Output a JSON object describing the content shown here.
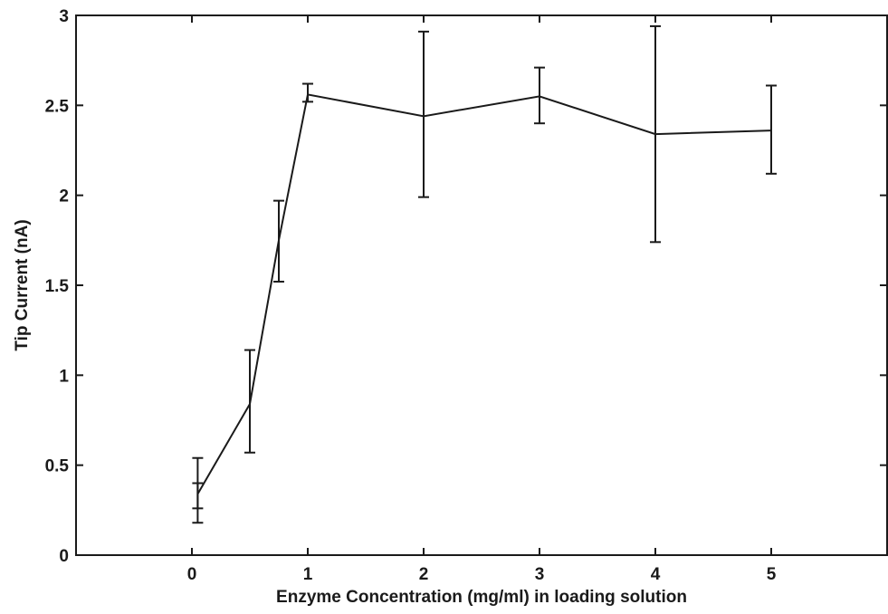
{
  "chart_data": {
    "type": "line",
    "title": "",
    "xlabel": "Enzyme Concentration (mg/ml) in loading solution",
    "ylabel": "Tip Current (nA)",
    "xlim": [
      -1,
      6
    ],
    "ylim": [
      0,
      3
    ],
    "xticks": [
      0,
      1,
      2,
      3,
      4,
      5
    ],
    "yticks": [
      0,
      0.5,
      1,
      1.5,
      2,
      2.5,
      3
    ],
    "xtick_labels": [
      "0",
      "1",
      "2",
      "3",
      "4",
      "5"
    ],
    "ytick_labels": [
      "0",
      "0.5",
      "1",
      "1.5",
      "2",
      "2.5",
      "3"
    ],
    "grid": false,
    "series": [
      {
        "x": [
          0.05,
          0.5,
          0.75,
          1,
          2,
          3,
          4,
          5
        ],
        "y": [
          0.34,
          0.84,
          1.75,
          2.56,
          2.44,
          2.55,
          2.34,
          2.36
        ],
        "err_low": [
          0.26,
          0.57,
          1.52,
          2.52,
          1.99,
          2.4,
          1.74,
          2.12
        ],
        "err_high": [
          0.4,
          1.14,
          1.97,
          2.62,
          2.91,
          2.71,
          2.94,
          2.61
        ]
      }
    ],
    "extra_error_bars": [
      {
        "x": 0.05,
        "low": 0.18,
        "high": 0.54
      }
    ]
  }
}
